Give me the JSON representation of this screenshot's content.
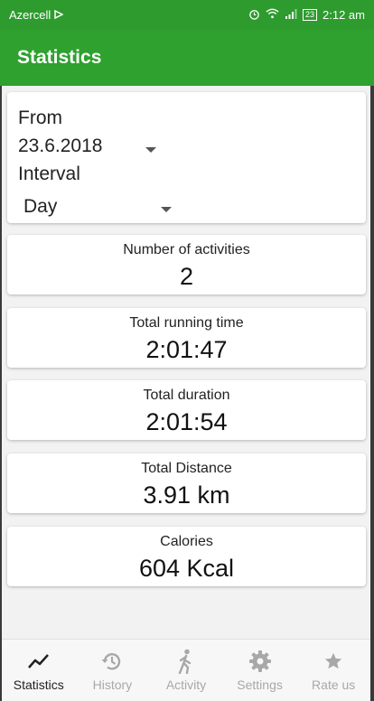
{
  "status_bar": {
    "carrier": "Azercell",
    "battery_text": "23",
    "time": "2:12 am"
  },
  "app_bar": {
    "title": "Statistics"
  },
  "filter": {
    "from_label": "From",
    "from_date": "23.6.2018",
    "interval_label": "Interval",
    "interval_value": "Day"
  },
  "stats": [
    {
      "title": "Number of activities",
      "value": "2"
    },
    {
      "title": "Total running time",
      "value": "2:01:47"
    },
    {
      "title": "Total duration",
      "value": "2:01:54"
    },
    {
      "title": "Total Distance",
      "value": "3.91  km"
    },
    {
      "title": "Calories",
      "value": "604  Kcal"
    }
  ],
  "bottom_nav": {
    "items": [
      {
        "label": "Statistics",
        "icon": "chart-line-icon",
        "active": true
      },
      {
        "label": "History",
        "icon": "history-icon",
        "active": false
      },
      {
        "label": "Activity",
        "icon": "walking-icon",
        "active": false
      },
      {
        "label": "Settings",
        "icon": "gear-icon",
        "active": false
      },
      {
        "label": "Rate us",
        "icon": "star-icon",
        "active": false
      }
    ]
  },
  "colors": {
    "primary": "#2ea12e",
    "status_bar": "#2e9b2e",
    "inactive": "#a8a8a8"
  }
}
